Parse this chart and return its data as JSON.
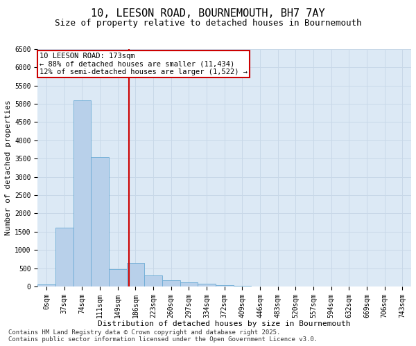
{
  "title": "10, LEESON ROAD, BOURNEMOUTH, BH7 7AY",
  "subtitle": "Size of property relative to detached houses in Bournemouth",
  "xlabel": "Distribution of detached houses by size in Bournemouth",
  "ylabel": "Number of detached properties",
  "categories": [
    "0sqm",
    "37sqm",
    "74sqm",
    "111sqm",
    "149sqm",
    "186sqm",
    "223sqm",
    "260sqm",
    "297sqm",
    "334sqm",
    "372sqm",
    "409sqm",
    "446sqm",
    "483sqm",
    "520sqm",
    "557sqm",
    "594sqm",
    "632sqm",
    "669sqm",
    "706sqm",
    "743sqm"
  ],
  "bar_values": [
    50,
    1600,
    5100,
    3550,
    480,
    650,
    310,
    175,
    120,
    70,
    28,
    10,
    4,
    2,
    1,
    0,
    0,
    0,
    0,
    0,
    0
  ],
  "bar_color": "#b8d0ea",
  "bar_edge_color": "#6aaad4",
  "vline_x": 4.65,
  "vline_color": "#cc0000",
  "ylim": [
    0,
    6500
  ],
  "yticks": [
    0,
    500,
    1000,
    1500,
    2000,
    2500,
    3000,
    3500,
    4000,
    4500,
    5000,
    5500,
    6000,
    6500
  ],
  "annotation_text": "10 LEESON ROAD: 173sqm\n← 88% of detached houses are smaller (11,434)\n12% of semi-detached houses are larger (1,522) →",
  "annotation_box_color": "#ffffff",
  "annotation_box_edge": "#cc0000",
  "grid_color": "#c8d8e8",
  "bg_color": "#dce9f5",
  "footnote": "Contains HM Land Registry data © Crown copyright and database right 2025.\nContains public sector information licensed under the Open Government Licence v3.0.",
  "title_fontsize": 11,
  "subtitle_fontsize": 9,
  "axis_label_fontsize": 8,
  "tick_fontsize": 7,
  "annotation_fontsize": 7.5,
  "footnote_fontsize": 6.5
}
